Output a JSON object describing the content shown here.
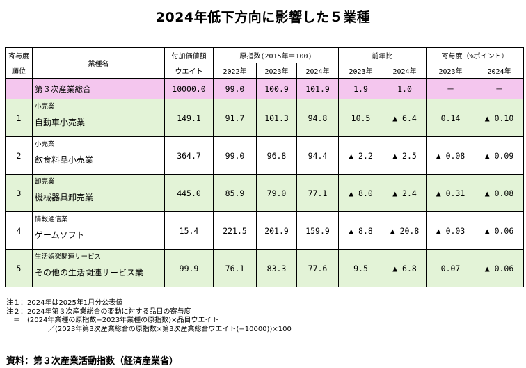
{
  "title": "2024年低下方向に影響した５業種",
  "header": {
    "rank_line1": "寄与度",
    "rank_line2": "順位",
    "name": "業種名",
    "weight_line1": "付加価値額",
    "weight_line2": "ウエイト",
    "index_group": "原指数(2015年＝100)",
    "yoy_group": "前年比",
    "contrib_group": "寄与度（%ポイント）",
    "y2022": "2022年",
    "y2023": "2023年",
    "y2024": "2024年"
  },
  "total": {
    "name": "第３次産業総合",
    "weight": "10000.0",
    "idx2022": "99.0",
    "idx2023": "100.9",
    "idx2024": "101.9",
    "yoy2023": "1.9",
    "yoy2024": "1.0",
    "c2023": "－",
    "c2024": "－"
  },
  "rows": [
    {
      "rank": "1",
      "category": "小売業",
      "name": "自動車小売業",
      "weight": "149.1",
      "idx2022": "91.7",
      "idx2023": "101.3",
      "idx2024": "94.8",
      "yoy2023": "10.5",
      "yoy2024": "▲ 6.4",
      "c2023": "0.14",
      "c2024": "▲ 0.10"
    },
    {
      "rank": "2",
      "category": "小売業",
      "name": "飲食料品小売業",
      "weight": "364.7",
      "idx2022": "99.0",
      "idx2023": "96.8",
      "idx2024": "94.4",
      "yoy2023": "▲ 2.2",
      "yoy2024": "▲ 2.5",
      "c2023": "▲ 0.08",
      "c2024": "▲ 0.09"
    },
    {
      "rank": "3",
      "category": "卸売業",
      "name": "機械器具卸売業",
      "weight": "445.0",
      "idx2022": "85.9",
      "idx2023": "79.0",
      "idx2024": "77.1",
      "yoy2023": "▲ 8.0",
      "yoy2024": "▲ 2.4",
      "c2023": "▲ 0.31",
      "c2024": "▲ 0.08"
    },
    {
      "rank": "4",
      "category": "情報通信業",
      "name": "ゲームソフト",
      "weight": "15.4",
      "idx2022": "221.5",
      "idx2023": "201.9",
      "idx2024": "159.9",
      "yoy2023": "▲ 8.8",
      "yoy2024": "▲ 20.8",
      "c2023": "▲ 0.03",
      "c2024": "▲ 0.06"
    },
    {
      "rank": "5",
      "category": "生活娯楽関連サービス",
      "name": "その他の生活関連サービス業",
      "weight": "99.9",
      "idx2022": "76.1",
      "idx2023": "83.3",
      "idx2024": "77.6",
      "yoy2023": "9.5",
      "yoy2024": "▲ 6.8",
      "c2023": "0.07",
      "c2024": "▲ 0.06"
    }
  ],
  "notes": [
    "注１：2024年は2025年1月分公表値",
    "注２：2024年第３次産業総合の変動に対する品目の寄与度",
    "　＝　(2024年業種の原指数−2023年業種の原指数)×品目ウエイト",
    "　　　　　　／(2023年第3次産業総合の原指数×第3次産業総合ウエイト(=10000))×100"
  ],
  "source": "資料：第３次産業活動指数（経済産業省）"
}
